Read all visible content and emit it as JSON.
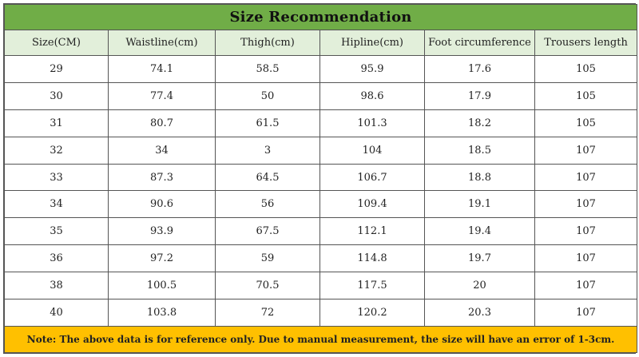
{
  "title": "Size Recommendation",
  "columns": [
    "Size(CM)",
    "Waistline(cm)",
    "Thigh(cm)",
    "Hipline(cm)",
    "Foot circumference",
    "Trousers length"
  ],
  "rows": [
    [
      "29",
      "74.1",
      "58.5",
      "95.9",
      "17.6",
      "105"
    ],
    [
      "30",
      "77.4",
      "50",
      "98.6",
      "17.9",
      "105"
    ],
    [
      "31",
      "80.7",
      "61.5",
      "101.3",
      "18.2",
      "105"
    ],
    [
      "32",
      "34",
      "3",
      "104",
      "18.5",
      "107"
    ],
    [
      "33",
      "87.3",
      "64.5",
      "106.7",
      "18.8",
      "107"
    ],
    [
      "34",
      "90.6",
      "56",
      "109.4",
      "19.1",
      "107"
    ],
    [
      "35",
      "93.9",
      "67.5",
      "112.1",
      "19.4",
      "107"
    ],
    [
      "36",
      "97.2",
      "59",
      "114.8",
      "19.7",
      "107"
    ],
    [
      "38",
      "100.5",
      "70.5",
      "117.5",
      "20",
      "107"
    ],
    [
      "40",
      "103.8",
      "72",
      "120.2",
      "20.3",
      "107"
    ]
  ],
  "note": "Note: The above data is for reference only. Due to manual measurement, the size will have an error of 1-3cm.",
  "colors": {
    "title_bg": "#70ad47",
    "header_bg": "#e2efda",
    "note_bg": "#ffc000",
    "border": "#555555"
  }
}
